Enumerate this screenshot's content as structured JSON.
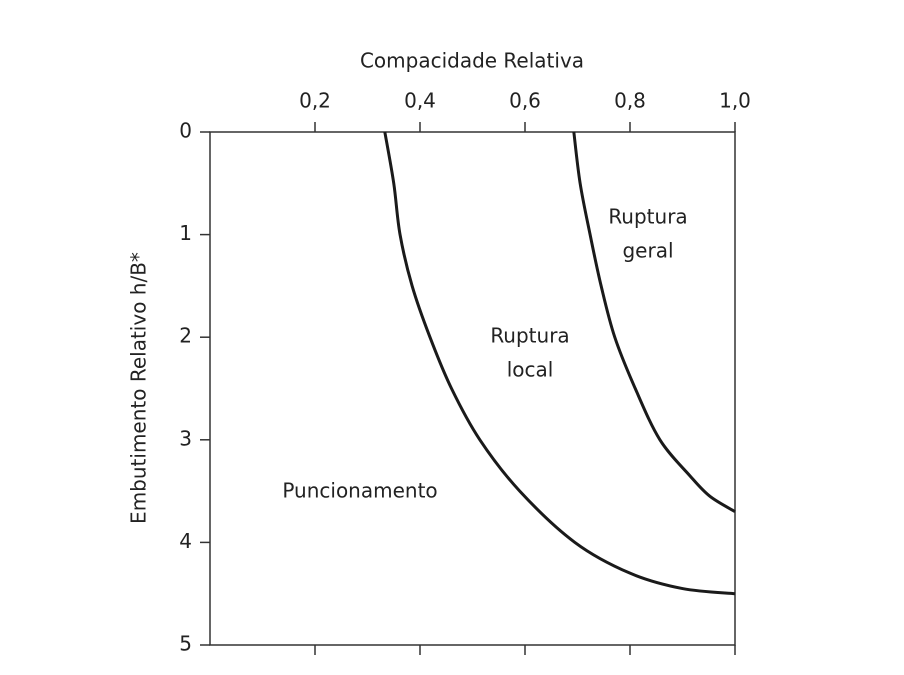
{
  "chart_data": {
    "type": "line",
    "title": "Compacidade Relativa",
    "y_label": "Embutimento Relativo h/B*",
    "xlim": [
      0,
      1.0
    ],
    "ylim": [
      0,
      5
    ],
    "y_inverted": true,
    "x_axis_position": "top",
    "xticks": [
      {
        "value": 0.2,
        "label": "0,2"
      },
      {
        "value": 0.4,
        "label": "0,4"
      },
      {
        "value": 0.6,
        "label": "0,6"
      },
      {
        "value": 0.8,
        "label": "0,8"
      },
      {
        "value": 1.0,
        "label": "1,0"
      }
    ],
    "yticks": [
      0,
      1,
      2,
      3,
      4,
      5
    ],
    "series": [
      {
        "color": "#1a1a1a",
        "x": [
          0.333,
          0.35,
          0.362,
          0.385,
          0.419,
          0.46,
          0.514,
          0.59,
          0.695,
          0.8,
          0.9,
          1.0
        ],
        "values": [
          0,
          0.5,
          1,
          1.5,
          2,
          2.5,
          3,
          3.5,
          4,
          4.3,
          4.45,
          4.5
        ]
      },
      {
        "color": "#1a1a1a",
        "x": [
          0.693,
          0.705,
          0.724,
          0.745,
          0.771,
          0.81,
          0.857,
          0.914,
          0.952,
          1.0
        ],
        "values": [
          0,
          0.5,
          1,
          1.5,
          2,
          2.5,
          3,
          3.35,
          3.55,
          3.7
        ]
      }
    ],
    "annotations": [
      {
        "lines": [
          "Ruptura",
          "geral"
        ]
      },
      {
        "lines": [
          "Ruptura",
          "local"
        ]
      },
      {
        "lines": [
          "Puncionamento"
        ]
      }
    ]
  }
}
